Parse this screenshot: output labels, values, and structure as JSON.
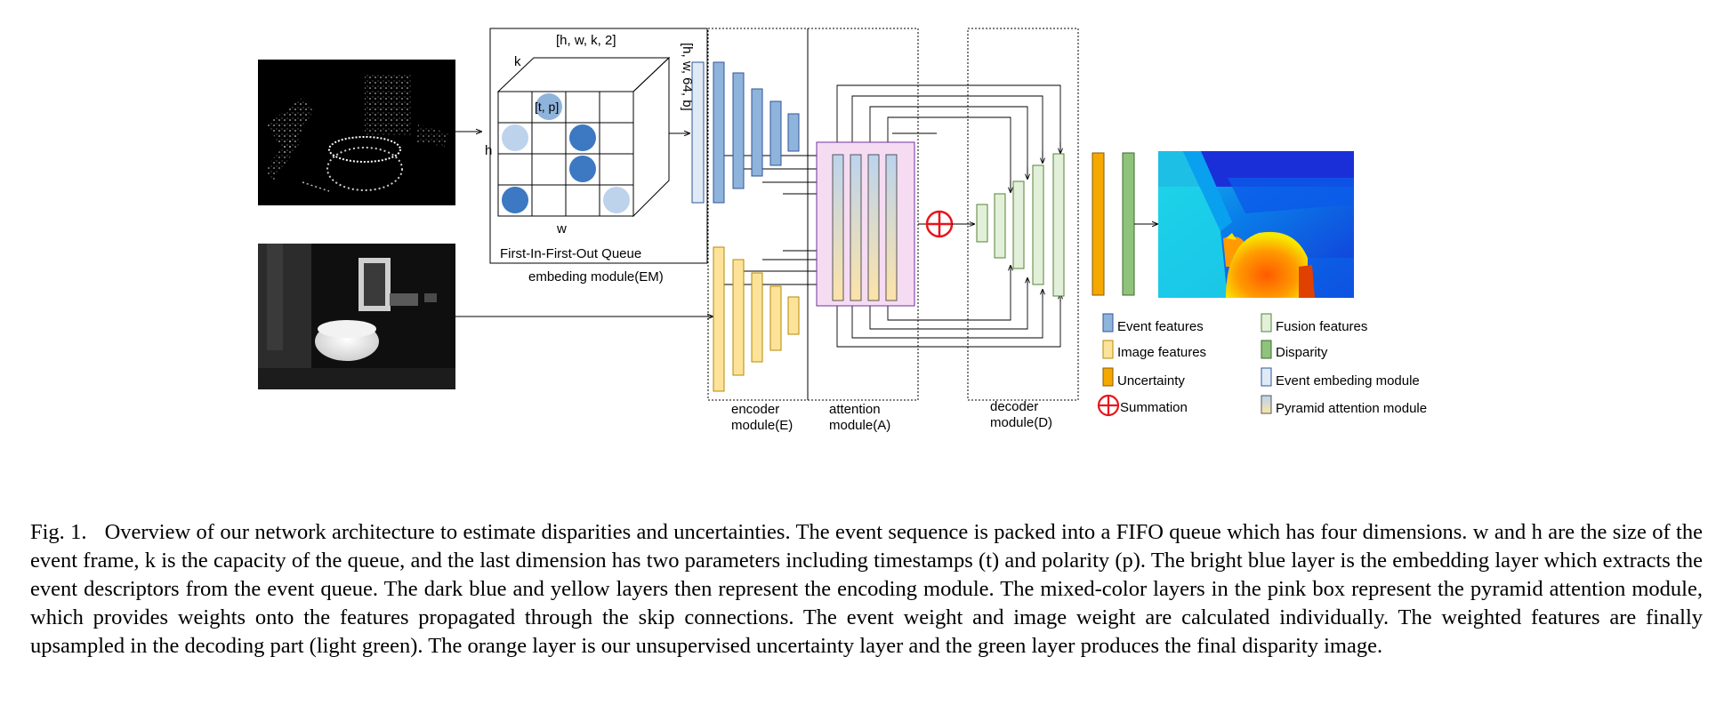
{
  "figure": {
    "queue": {
      "dims_label": "[h, w, k, 2]",
      "k_label": "k",
      "h_label": "h",
      "w_label": "w",
      "cell_label": "[t, p]",
      "queue_label": "First-In-First-Out Queue",
      "module_label": "embeding module(EM)"
    },
    "embed_dims_label": "[h, w, 64, b]",
    "modules": {
      "encoder_line1": "encoder",
      "encoder_line2": "module(E)",
      "attention_line1": "attention",
      "attention_line2": "module(A)",
      "decoder_line1": "decoder",
      "decoder_line2": "module(D)"
    },
    "legend": [
      {
        "label": "Event features",
        "icon": "swatch",
        "color": "#8fb4dc"
      },
      {
        "label": "Fusion features",
        "icon": "swatch",
        "color": "#e2f0d9"
      },
      {
        "label": "Image features",
        "icon": "swatch",
        "color": "#fde39a"
      },
      {
        "label": "Disparity",
        "icon": "swatch",
        "color": "#8fc27b"
      },
      {
        "label": "Uncertainty",
        "icon": "swatch",
        "color": "#f5a800"
      },
      {
        "label": "Event embeding module",
        "icon": "swatch",
        "color": "#dfeaf6"
      },
      {
        "label": "Summation",
        "icon": "summation-icon",
        "color": "#e8141b"
      },
      {
        "label": "Pyramid attention module",
        "icon": "gradient-swatch",
        "color": "#fde3b3"
      }
    ],
    "colors": {
      "event": "#8fb4dc",
      "event_stroke": "#2f5597",
      "embed": "#dfeaf6",
      "image": "#fde39a",
      "image_stroke": "#b58a00",
      "fusion": "#e2f0d9",
      "fusion_stroke": "#548235",
      "disparity": "#8fc27b",
      "uncertainty": "#f5a800",
      "attention_box": "#f6dcf3",
      "summation": "#e8141b"
    }
  },
  "caption": {
    "label": "Fig. 1.",
    "text": "Overview of our network architecture to estimate disparities and uncertainties. The event sequence is packed into a FIFO queue which has four dimensions. w and h are the size of the event frame, k is the capacity of the queue, and the last dimension has two parameters including timestamps (t) and polarity (p). The bright blue layer is the embedding layer which extracts the event descriptors from the event queue. The dark blue and yellow layers then represent the encoding module. The mixed-color layers in the pink box represent the pyramid attention module, which provides weights onto the features propagated through the skip connections. The event weight and image weight are calculated individually. The weighted features are finally upsampled in the decoding part (light green). The orange layer is our unsupervised uncertainty layer and the green layer produces the final disparity image."
  }
}
